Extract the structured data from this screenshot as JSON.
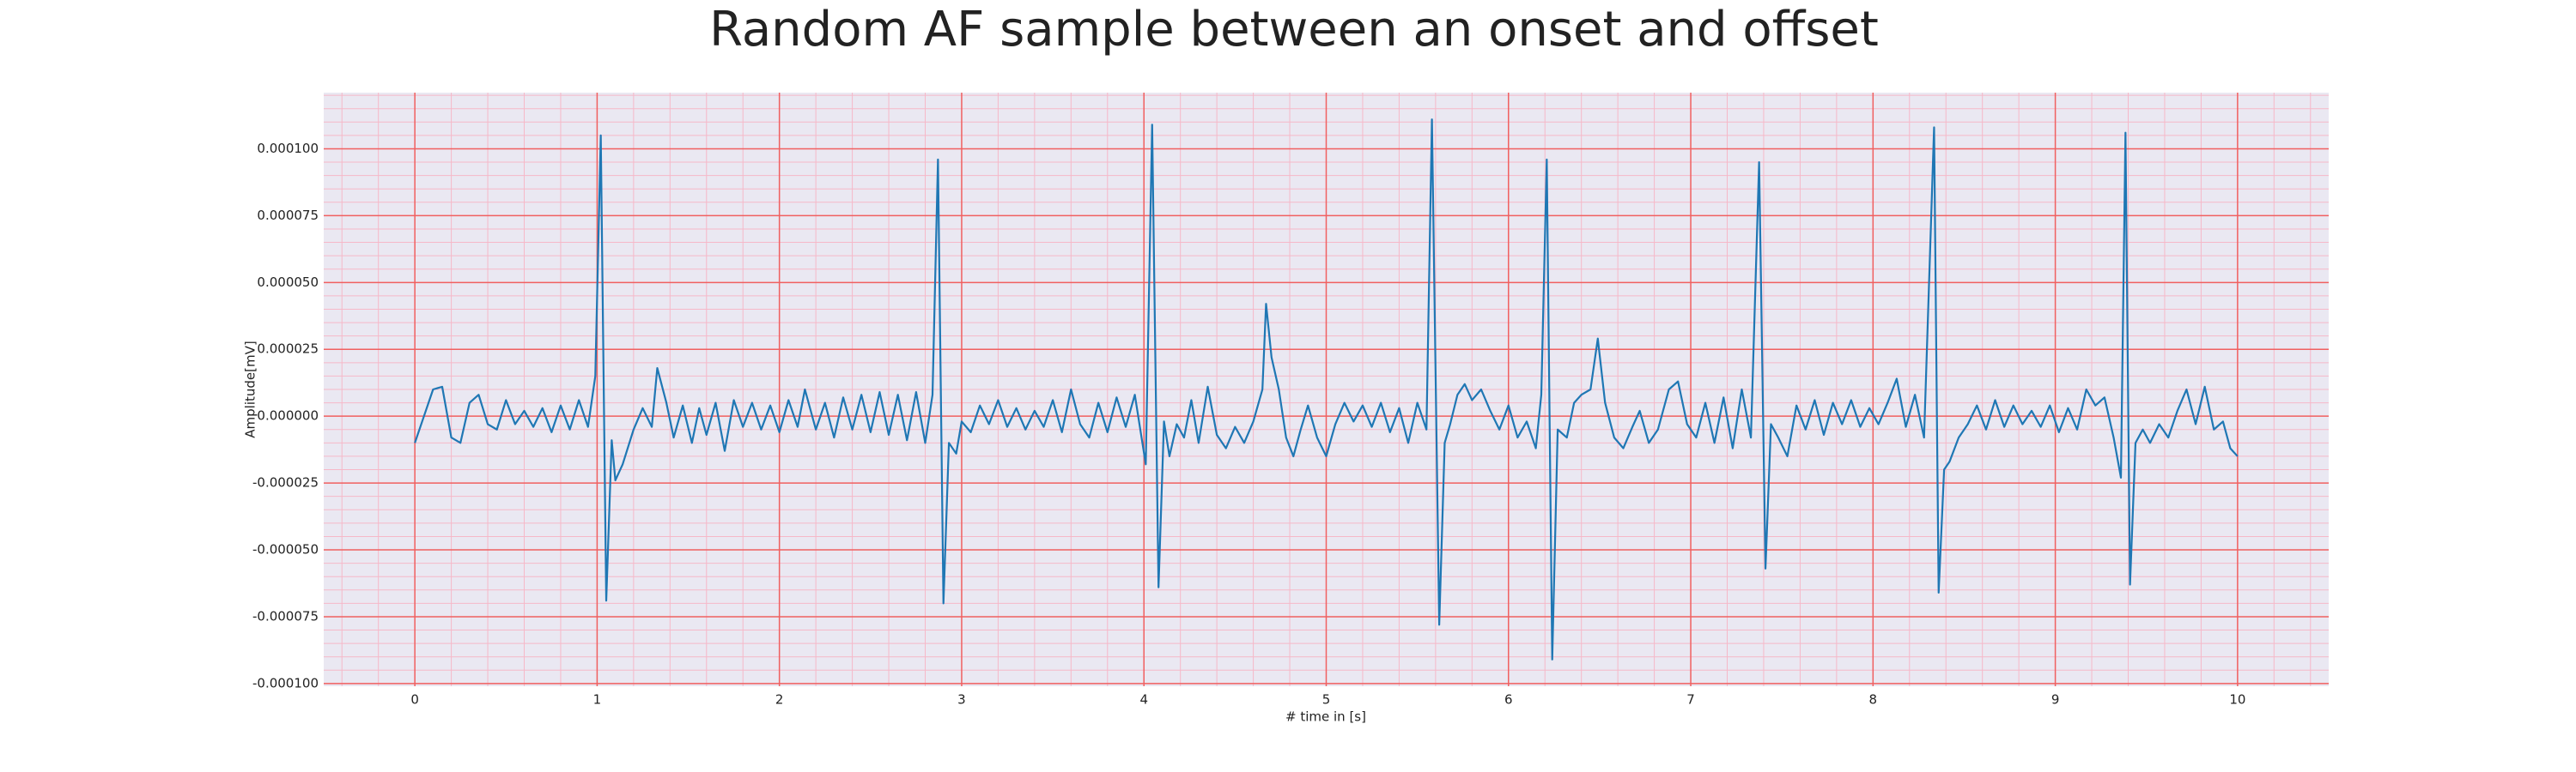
{
  "chart_data": {
    "type": "line",
    "title": "Random AF sample between an onset and offset",
    "x_label": "# time in [s]",
    "y_label": "Amplitude[mV]",
    "color": "#1f77b4",
    "grid": true,
    "minor_grid": true,
    "xlim": [
      -0.5,
      10.5
    ],
    "xticks": [
      0,
      1,
      2,
      3,
      4,
      5,
      6,
      7,
      8,
      9,
      10
    ],
    "ylim": [
      -0.000101,
      0.000121
    ],
    "yticks": [
      {
        "value": -0.0001,
        "label": "-0.000100"
      },
      {
        "value": -7.5e-05,
        "label": "-0.000075"
      },
      {
        "value": -5e-05,
        "label": "-0.000050"
      },
      {
        "value": -2.5e-05,
        "label": "-0.000025"
      },
      {
        "value": 0,
        "label": "0.000000"
      },
      {
        "value": 2.5e-05,
        "label": "0.000025"
      },
      {
        "value": 5e-05,
        "label": "0.000050"
      },
      {
        "value": 7.5e-05,
        "label": "0.000075"
      },
      {
        "value": 0.0001,
        "label": "0.000100"
      }
    ],
    "x": [
      0.0,
      0.05,
      0.1,
      0.15,
      0.2,
      0.25,
      0.3,
      0.35,
      0.4,
      0.45,
      0.5,
      0.55,
      0.6,
      0.65,
      0.7,
      0.75,
      0.8,
      0.85,
      0.9,
      0.95,
      0.99,
      1.02,
      1.05,
      1.08,
      1.1,
      1.14,
      1.2,
      1.25,
      1.3,
      1.33,
      1.38,
      1.42,
      1.47,
      1.52,
      1.56,
      1.6,
      1.65,
      1.7,
      1.75,
      1.8,
      1.85,
      1.9,
      1.95,
      2.0,
      2.05,
      2.1,
      2.14,
      2.2,
      2.25,
      2.3,
      2.35,
      2.4,
      2.45,
      2.5,
      2.55,
      2.6,
      2.65,
      2.7,
      2.75,
      2.8,
      2.84,
      2.87,
      2.9,
      2.93,
      2.97,
      3.0,
      3.05,
      3.1,
      3.15,
      3.2,
      3.25,
      3.3,
      3.35,
      3.4,
      3.45,
      3.5,
      3.55,
      3.6,
      3.65,
      3.7,
      3.75,
      3.8,
      3.85,
      3.9,
      3.95,
      4.01,
      4.045,
      4.08,
      4.11,
      4.14,
      4.18,
      4.22,
      4.26,
      4.3,
      4.35,
      4.4,
      4.45,
      4.5,
      4.55,
      4.6,
      4.65,
      4.67,
      4.7,
      4.74,
      4.78,
      4.82,
      4.86,
      4.9,
      4.95,
      5.0,
      5.05,
      5.1,
      5.15,
      5.2,
      5.25,
      5.3,
      5.35,
      5.4,
      5.45,
      5.5,
      5.55,
      5.58,
      5.62,
      5.65,
      5.68,
      5.72,
      5.76,
      5.8,
      5.85,
      5.9,
      5.95,
      6.0,
      6.05,
      6.1,
      6.15,
      6.18,
      6.21,
      6.24,
      6.27,
      6.32,
      6.36,
      6.4,
      6.45,
      6.49,
      6.53,
      6.58,
      6.63,
      6.68,
      6.72,
      6.77,
      6.82,
      6.88,
      6.93,
      6.98,
      7.03,
      7.08,
      7.13,
      7.18,
      7.23,
      7.28,
      7.33,
      7.375,
      7.41,
      7.44,
      7.48,
      7.53,
      7.58,
      7.63,
      7.68,
      7.73,
      7.78,
      7.83,
      7.88,
      7.93,
      7.98,
      8.03,
      8.08,
      8.13,
      8.18,
      8.23,
      8.28,
      8.335,
      8.36,
      8.39,
      8.42,
      8.47,
      8.52,
      8.57,
      8.62,
      8.67,
      8.72,
      8.77,
      8.82,
      8.87,
      8.92,
      8.97,
      9.02,
      9.07,
      9.12,
      9.17,
      9.22,
      9.27,
      9.32,
      9.36,
      9.385,
      9.41,
      9.44,
      9.48,
      9.52,
      9.57,
      9.62,
      9.67,
      9.72,
      9.77,
      9.82,
      9.87,
      9.92,
      9.96,
      10.0
    ],
    "values": [
      -1e-05,
      0.0,
      1e-05,
      1.1e-05,
      -8e-06,
      -1e-05,
      5e-06,
      8e-06,
      -3e-06,
      -5e-06,
      6e-06,
      -3e-06,
      2e-06,
      -4e-06,
      3e-06,
      -6e-06,
      4e-06,
      -5e-06,
      6e-06,
      -4e-06,
      1.5e-05,
      0.000105,
      -6.9e-05,
      -9e-06,
      -2.4e-05,
      -1.8e-05,
      -5e-06,
      3e-06,
      -4e-06,
      1.8e-05,
      5e-06,
      -8e-06,
      4e-06,
      -1e-05,
      3e-06,
      -7e-06,
      5e-06,
      -1.3e-05,
      6e-06,
      -4e-06,
      5e-06,
      -5e-06,
      4e-06,
      -6e-06,
      6e-06,
      -4e-06,
      1e-05,
      -5e-06,
      5e-06,
      -8e-06,
      7e-06,
      -5e-06,
      8e-06,
      -6e-06,
      9e-06,
      -7e-06,
      8e-06,
      -9e-06,
      9e-06,
      -1e-05,
      8e-06,
      9.6e-05,
      -7e-05,
      -1e-05,
      -1.4e-05,
      -2e-06,
      -6e-06,
      4e-06,
      -3e-06,
      6e-06,
      -4e-06,
      3e-06,
      -5e-06,
      2e-06,
      -4e-06,
      6e-06,
      -6e-06,
      1e-05,
      -3e-06,
      -8e-06,
      5e-06,
      -6e-06,
      7e-06,
      -4e-06,
      8e-06,
      -1.8e-05,
      0.000109,
      -6.4e-05,
      -2e-06,
      -1.5e-05,
      -3e-06,
      -8e-06,
      6e-06,
      -1e-05,
      1.1e-05,
      -7e-06,
      -1.2e-05,
      -4e-06,
      -1e-05,
      -2e-06,
      1e-05,
      4.2e-05,
      2.2e-05,
      1e-05,
      -8e-06,
      -1.5e-05,
      -5e-06,
      4e-06,
      -8e-06,
      -1.5e-05,
      -3e-06,
      5e-06,
      -2e-06,
      4e-06,
      -4e-06,
      5e-06,
      -6e-06,
      3e-06,
      -1e-05,
      5e-06,
      -5e-06,
      0.000111,
      -7.8e-05,
      -1e-05,
      -3e-06,
      8e-06,
      1.2e-05,
      6e-06,
      1e-05,
      2e-06,
      -5e-06,
      4e-06,
      -8e-06,
      -2e-06,
      -1.2e-05,
      8e-06,
      9.6e-05,
      -9.1e-05,
      -5e-06,
      -8e-06,
      5e-06,
      8e-06,
      1e-05,
      2.9e-05,
      5e-06,
      -8e-06,
      -1.2e-05,
      -4e-06,
      2e-06,
      -1e-05,
      -5e-06,
      1e-05,
      1.3e-05,
      -3e-06,
      -8e-06,
      5e-06,
      -1e-05,
      7e-06,
      -1.2e-05,
      1e-05,
      -8e-06,
      9.5e-05,
      -5.7e-05,
      -3e-06,
      -8e-06,
      -1.5e-05,
      4e-06,
      -5e-06,
      6e-06,
      -7e-06,
      5e-06,
      -3e-06,
      6e-06,
      -4e-06,
      3e-06,
      -3e-06,
      5e-06,
      1.4e-05,
      -4e-06,
      8e-06,
      -8e-06,
      0.000108,
      -6.6e-05,
      -2e-05,
      -1.7e-05,
      -8e-06,
      -3e-06,
      4e-06,
      -5e-06,
      6e-06,
      -4e-06,
      4e-06,
      -3e-06,
      2e-06,
      -4e-06,
      4e-06,
      -6e-06,
      3e-06,
      -5e-06,
      1e-05,
      4e-06,
      7e-06,
      -8e-06,
      -2.3e-05,
      0.000106,
      -6.3e-05,
      -1e-05,
      -5e-06,
      -1e-05,
      -3e-06,
      -8e-06,
      2e-06,
      1e-05,
      -3e-06,
      1.1e-05,
      -5e-06,
      -2e-06,
      -1.2e-05,
      -1.5e-05
    ]
  }
}
